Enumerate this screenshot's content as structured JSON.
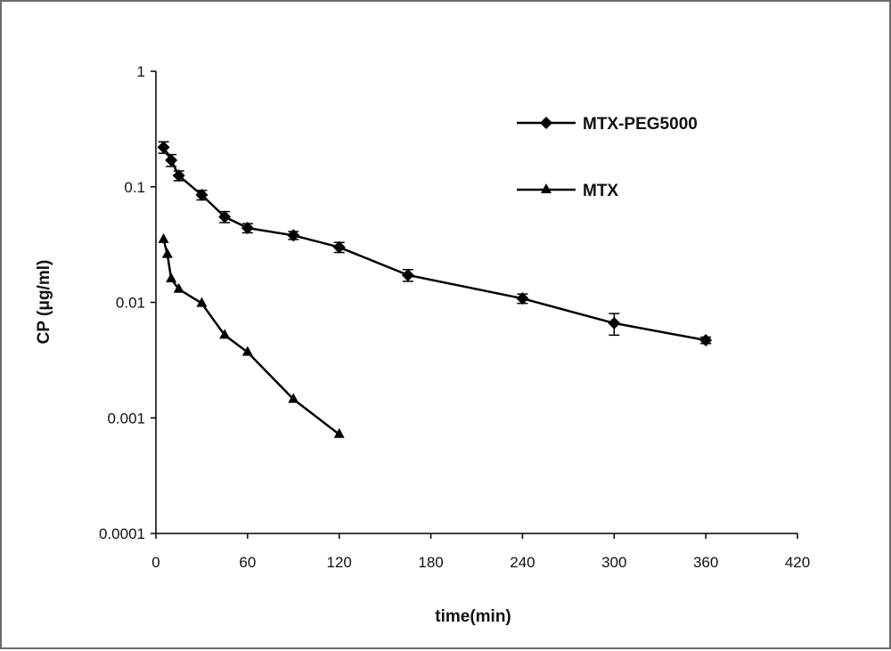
{
  "chart_data": {
    "type": "line",
    "xlabel": "time(min)",
    "ylabel": "CP (μg/ml)",
    "y_scale": "log",
    "xlim": [
      0,
      420
    ],
    "ylim": [
      0.0001,
      1
    ],
    "x_ticks": [
      "0",
      "60",
      "120",
      "180",
      "240",
      "300",
      "360",
      "420"
    ],
    "y_ticks": [
      "0.0001",
      "0.001",
      "0.01",
      "0.1",
      "1"
    ],
    "grid": false,
    "legend_position": "top-right",
    "series": [
      {
        "name": "MTX-PEG5000",
        "marker": "diamond",
        "x": [
          5,
          10,
          15,
          30,
          45,
          60,
          90,
          120,
          165,
          240,
          300,
          360
        ],
        "y": [
          0.22,
          0.17,
          0.125,
          0.085,
          0.055,
          0.044,
          0.038,
          0.03,
          0.0172,
          0.0108,
          0.0066,
          0.0047
        ],
        "error": [
          0.025,
          0.02,
          0.012,
          0.008,
          0.006,
          0.004,
          0.003,
          0.003,
          0.002,
          0.001,
          0.0014,
          0.0003
        ]
      },
      {
        "name": "MTX",
        "marker": "triangle",
        "x": [
          5,
          7.5,
          10,
          15,
          30,
          45,
          60,
          90,
          120
        ],
        "y": [
          0.035,
          0.026,
          0.016,
          0.013,
          0.0098,
          0.0052,
          0.0037,
          0.00145,
          0.00072
        ]
      }
    ]
  }
}
